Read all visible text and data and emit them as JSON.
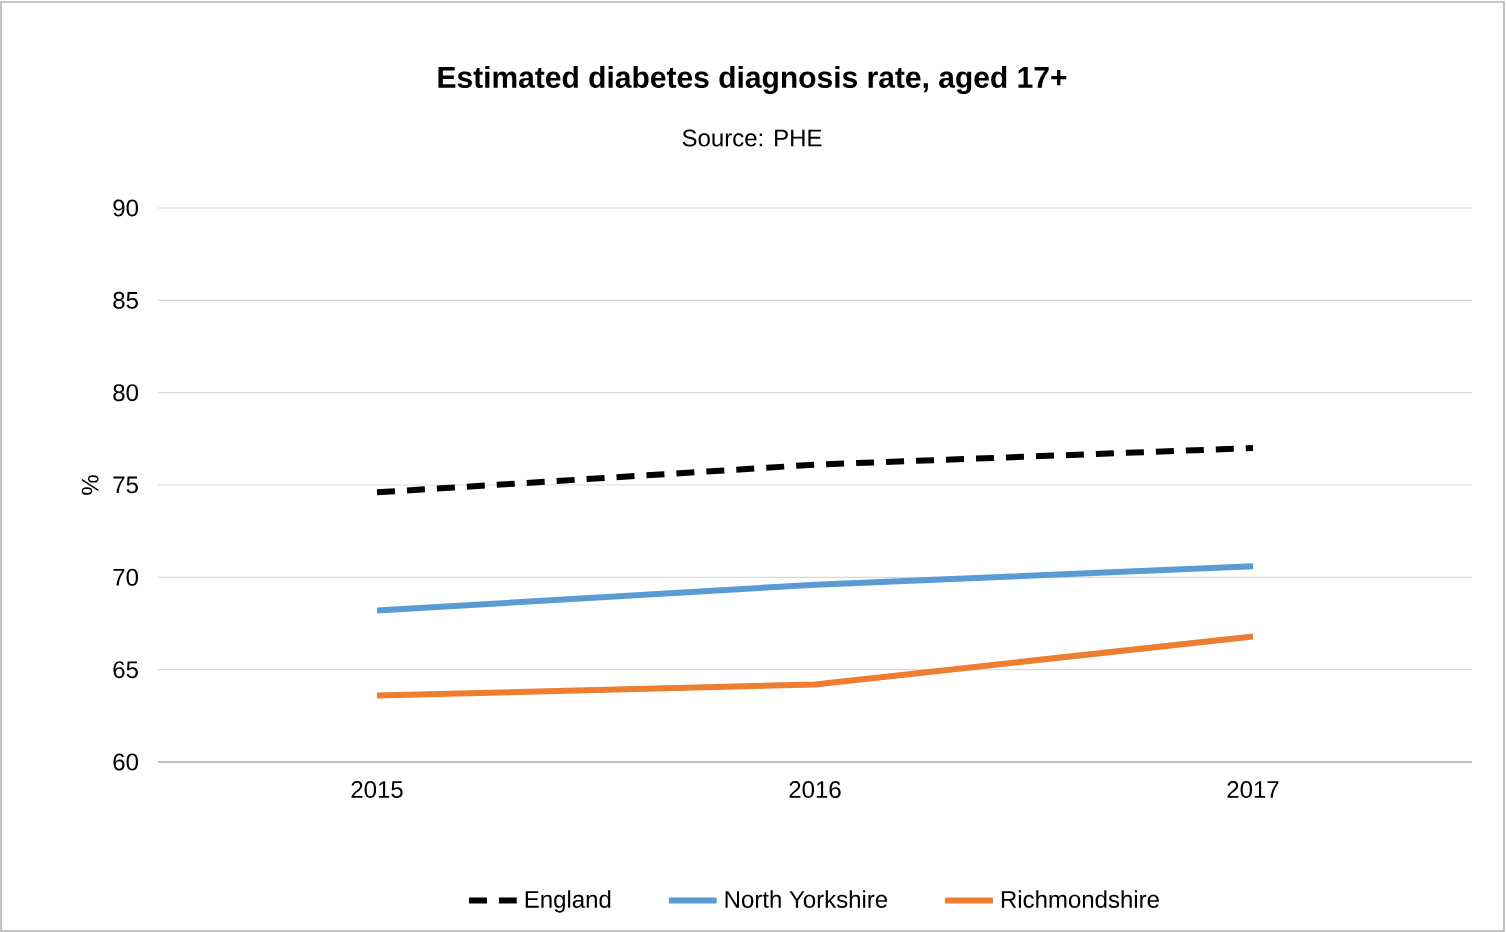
{
  "chart_data": {
    "type": "line",
    "title": "Estimated diabetes diagnosis rate, aged 17+",
    "annotations": [
      "Source: PHE"
    ],
    "ylabel": "%",
    "categories": [
      "2015",
      "2016",
      "2017"
    ],
    "series": [
      {
        "name": "England",
        "color": "#000000",
        "line_style": "dashed",
        "values": [
          74.6,
          76.1,
          77.0
        ]
      },
      {
        "name": "North Yorkshire",
        "color": "#5b9bd5",
        "line_style": "solid",
        "values": [
          68.2,
          69.6,
          70.6
        ]
      },
      {
        "name": "Richmondshire",
        "color": "#ed7d31",
        "line_style": "solid",
        "values": [
          63.6,
          64.2,
          66.8
        ]
      }
    ],
    "ylim": [
      60,
      90
    ],
    "yticks": [
      60,
      65,
      70,
      75,
      80,
      85,
      90
    ],
    "grid": "y",
    "legend": "bottom",
    "marker": "none"
  }
}
